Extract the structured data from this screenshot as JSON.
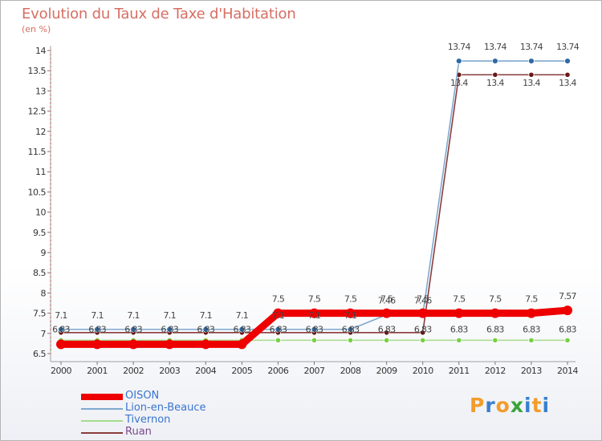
{
  "title": "Evolution du Taux de Taxe d'Habitation",
  "subtitle": "(en %)",
  "brand": "Proxiti",
  "brand_colors": [
    "#f39c2c",
    "#3a7fd0",
    "#f39c2c",
    "#39a33a",
    "#3a7fd0",
    "#f39c2c",
    "#3a7fd0"
  ],
  "chart_data": {
    "type": "line",
    "title": "Evolution du Taux de Taxe d'Habitation",
    "ylabel": "(en %)",
    "xlabel": "",
    "ylim": [
      6.5,
      14
    ],
    "y_ticks": [
      6.5,
      7,
      7.5,
      8,
      8.5,
      9,
      9.5,
      10,
      10.5,
      11,
      11.5,
      12,
      12.5,
      13,
      13.5,
      14
    ],
    "y_tick_labels": [
      "6.5",
      "7",
      "7.5",
      "8",
      "8.5",
      "9",
      "9.5",
      "10",
      "10.5",
      "11",
      "11.5",
      "12",
      "12.5",
      "13",
      "13.5",
      "14"
    ],
    "x": [
      "2000",
      "2001",
      "2002",
      "2003",
      "2004",
      "2005",
      "2006",
      "2007",
      "2008",
      "2009",
      "2010",
      "2011",
      "2012",
      "2013",
      "2014"
    ],
    "grid": false,
    "legend_position": "bottom-left",
    "series": [
      {
        "name": "OISON",
        "color": "#ee0000",
        "marker_color": "#ee0000",
        "values": [
          6.73,
          6.73,
          6.73,
          6.73,
          6.73,
          6.73,
          7.5,
          7.5,
          7.5,
          7.5,
          7.5,
          7.5,
          7.5,
          7.5,
          7.57
        ],
        "labels": [
          "",
          "",
          "",
          "",
          "",
          "",
          "7.5",
          "7.5",
          "7.5",
          "7.5",
          "7.5",
          "7.5",
          "7.5",
          "7.5",
          "7.57"
        ]
      },
      {
        "name": "Lion-en-Beauce",
        "color": "#7fa9cf",
        "marker_color": "#2e6ba6",
        "values": [
          7.1,
          7.1,
          7.1,
          7.1,
          7.1,
          7.1,
          7.1,
          7.1,
          7.1,
          7.46,
          7.46,
          13.74,
          13.74,
          13.74,
          13.74
        ],
        "labels": [
          "7.1",
          "7.1",
          "7.1",
          "7.1",
          "7.1",
          "7.1",
          "7.1",
          "7.1",
          "7.1",
          "7.46",
          "7.46",
          "13.74",
          "13.74",
          "13.74",
          "13.74"
        ]
      },
      {
        "name": "Tivernon",
        "color": "#a6dd8c",
        "marker_color": "#77d042",
        "values": [
          6.83,
          6.83,
          6.83,
          6.83,
          6.83,
          6.83,
          6.83,
          6.83,
          6.83,
          6.83,
          6.83,
          6.83,
          6.83,
          6.83,
          6.83
        ],
        "labels": [
          "6.83",
          "6.83",
          "6.83",
          "6.83",
          "6.83",
          "6.83",
          "6.83",
          "6.83",
          "6.83",
          "6.83",
          "6.83",
          "6.83",
          "6.83",
          "6.83",
          "6.83"
        ]
      },
      {
        "name": "Ruan",
        "color": "#8a3c3c",
        "marker_color": "#6b1616",
        "values": [
          7.02,
          7.02,
          7.02,
          7.02,
          7.02,
          7.02,
          7.02,
          7.02,
          7.02,
          7.02,
          7.02,
          13.4,
          13.4,
          13.4,
          13.4
        ],
        "labels": [
          "",
          "",
          "",
          "",
          "",
          "",
          "",
          "",
          "",
          "",
          "",
          "13.4",
          "13.4",
          "13.4",
          "13.4"
        ]
      }
    ]
  }
}
